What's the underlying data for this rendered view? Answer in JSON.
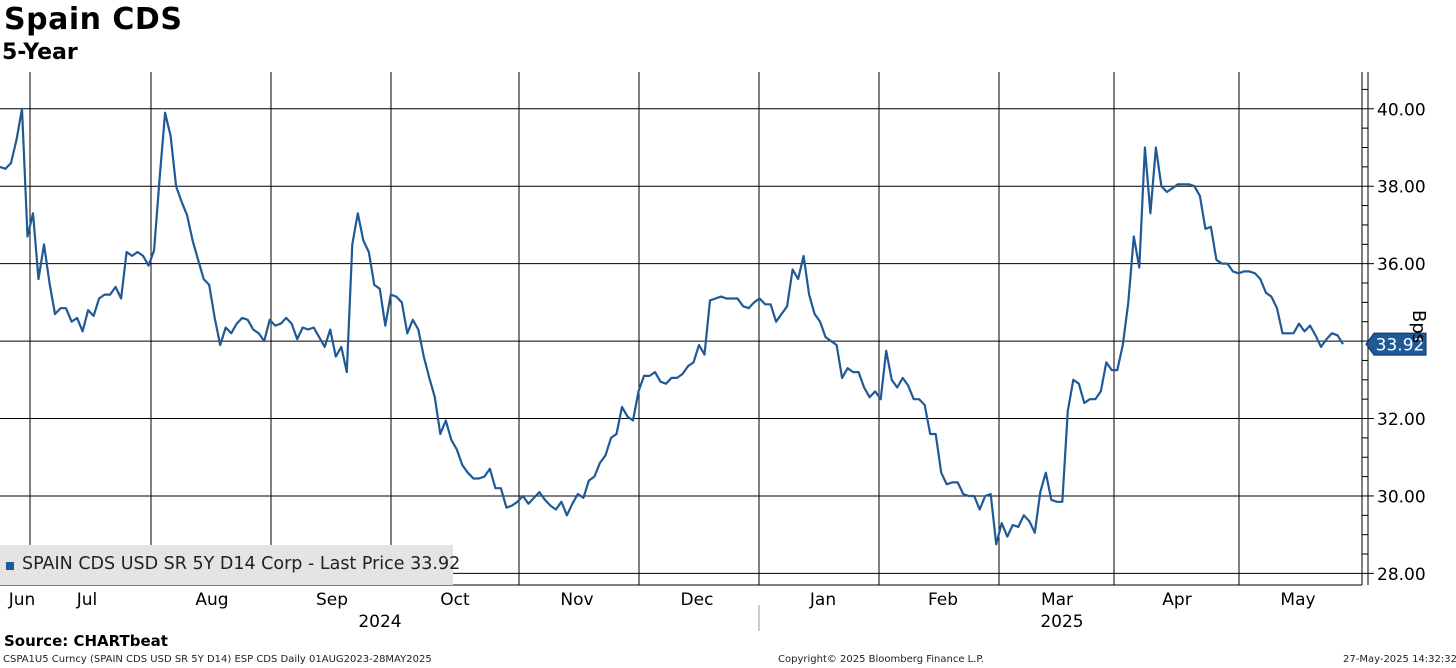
{
  "chart_data": {
    "type": "line",
    "title": "Spain CDS",
    "subtitle": "5-Year",
    "ylabel": "Bps",
    "ylim": [
      27.7,
      40.95
    ],
    "yticks": [
      28,
      30,
      32,
      34,
      36,
      38,
      40
    ],
    "ytick_labels": [
      "28.00",
      "30.00",
      "32.00",
      "",
      "36.00",
      "38.00",
      "40.00"
    ],
    "grid": true,
    "month_labels": [
      "Jun",
      "Jul",
      "Aug",
      "Sep",
      "Oct",
      "Nov",
      "Dec",
      "Jan",
      "Feb",
      "Mar",
      "Apr",
      "May"
    ],
    "year_labels": [
      "2024",
      "2025"
    ],
    "last_value_label": "33.92",
    "series": [
      {
        "name": "SPAIN CDS USD SR 5Y D14 Corp - Last Price",
        "color": "#1f5a96",
        "last_price": "33.92",
        "values": [
          38.5,
          38.45,
          38.6,
          39.2,
          40.0,
          36.7,
          37.3,
          35.6,
          36.5,
          35.5,
          34.7,
          34.85,
          34.85,
          34.5,
          34.6,
          34.25,
          34.8,
          34.65,
          35.1,
          35.2,
          35.2,
          35.4,
          35.1,
          36.3,
          36.2,
          36.3,
          36.2,
          35.95,
          36.35,
          38.2,
          39.9,
          39.3,
          38.0,
          37.6,
          37.25,
          36.6,
          36.1,
          35.6,
          35.45,
          34.6,
          33.9,
          34.35,
          34.2,
          34.45,
          34.6,
          34.55,
          34.3,
          34.2,
          34.0,
          34.55,
          34.4,
          34.45,
          34.6,
          34.45,
          34.05,
          34.35,
          34.3,
          34.35,
          34.1,
          33.85,
          34.3,
          33.6,
          33.85,
          33.2,
          36.5,
          37.3,
          36.6,
          36.3,
          35.45,
          35.35,
          34.4,
          35.2,
          35.15,
          35.0,
          34.2,
          34.55,
          34.3,
          33.6,
          33.05,
          32.55,
          31.6,
          31.95,
          31.45,
          31.2,
          30.8,
          30.6,
          30.45,
          30.45,
          30.5,
          30.7,
          30.2,
          30.2,
          29.7,
          29.75,
          29.85,
          30.0,
          29.8,
          29.95,
          30.1,
          29.9,
          29.75,
          29.65,
          29.85,
          29.5,
          29.8,
          30.05,
          29.95,
          30.4,
          30.5,
          30.85,
          31.05,
          31.5,
          31.6,
          32.3,
          32.05,
          31.95,
          32.7,
          33.1,
          33.1,
          33.2,
          32.95,
          32.9,
          33.05,
          33.05,
          33.15,
          33.35,
          33.45,
          33.9,
          33.65,
          35.05,
          35.1,
          35.15,
          35.1,
          35.1,
          35.1,
          34.9,
          34.85,
          35.0,
          35.1,
          34.95,
          34.95,
          34.5,
          34.7,
          34.9,
          35.85,
          35.6,
          36.2,
          35.2,
          34.7,
          34.5,
          34.1,
          34.0,
          33.9,
          33.05,
          33.3,
          33.2,
          33.2,
          32.8,
          32.55,
          32.7,
          32.5,
          33.75,
          33.0,
          32.8,
          33.05,
          32.85,
          32.5,
          32.5,
          32.35,
          31.6,
          31.6,
          30.6,
          30.3,
          30.35,
          30.35,
          30.05,
          30.0,
          30.0,
          29.65,
          30.0,
          30.05,
          28.75,
          29.3,
          28.95,
          29.25,
          29.2,
          29.5,
          29.35,
          29.05,
          30.1,
          30.6,
          29.9,
          29.85,
          29.85,
          32.2,
          33.0,
          32.9,
          32.4,
          32.5,
          32.5,
          32.7,
          33.45,
          33.25,
          33.25,
          33.9,
          35.0,
          36.7,
          35.9,
          39.0,
          37.3,
          39.0,
          38.0,
          37.85,
          37.95,
          38.05,
          38.05,
          38.05,
          38.0,
          37.75,
          36.9,
          36.95,
          36.1,
          36.0,
          36.0,
          35.8,
          35.75,
          35.8,
          35.8,
          35.75,
          35.6,
          35.25,
          35.15,
          34.85,
          34.2,
          34.2,
          34.2,
          34.45,
          34.25,
          34.4,
          34.15,
          33.85,
          34.05,
          34.2,
          34.15,
          33.92
        ]
      }
    ]
  },
  "legend": {
    "label": "SPAIN CDS USD SR 5Y D14 Corp - Last Price 33.92"
  },
  "source": "Source: CHARTbeat",
  "footer": {
    "left": "CSPA1U5 Curncy (SPAIN CDS USD SR 5Y D14) ESP CDS  Daily 01AUG2023-28MAY2025",
    "center": "Copyright© 2025 Bloomberg Finance L.P.",
    "right": "27-May-2025 14:32:32"
  }
}
